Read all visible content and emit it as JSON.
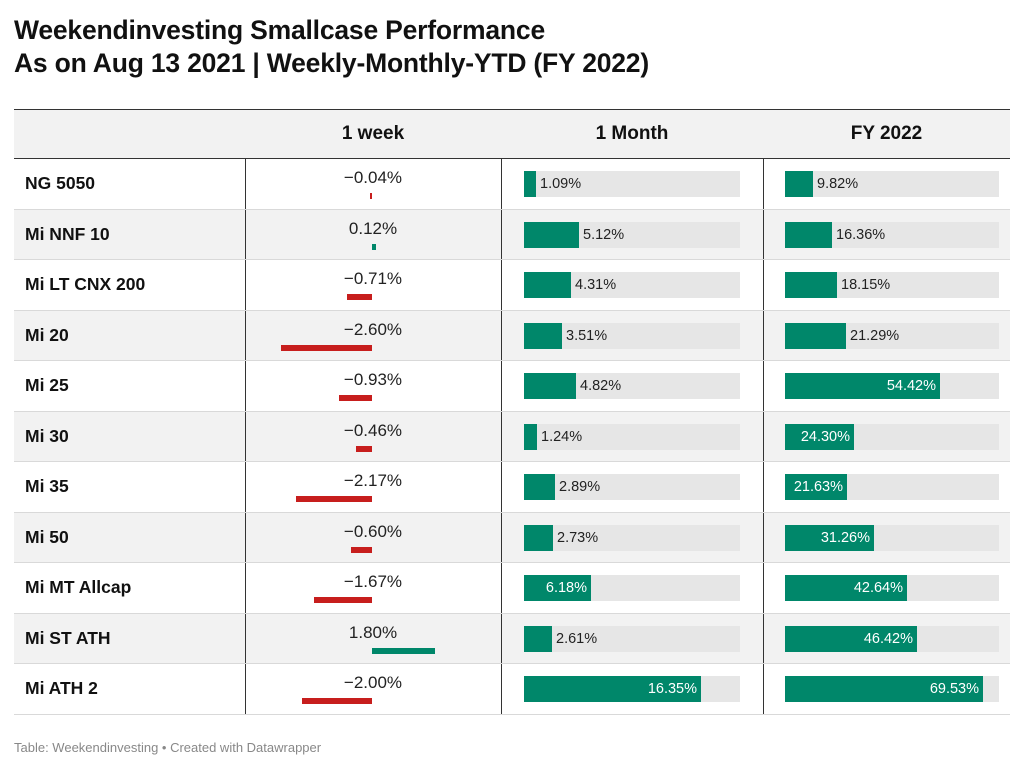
{
  "title_lines": [
    "Weekendinvesting Smallcase Performance",
    "As on Aug 13 2021 | Weekly-Monthly-YTD (FY 2022)"
  ],
  "footer": "Table: Weekendinvesting • Created with Datawrapper",
  "colors": {
    "positive": "#00876a",
    "negative": "#c71e1d",
    "bar_bg": "#e6e6e6"
  },
  "chart_data": {
    "type": "table",
    "columns": [
      "",
      "1 week",
      "1 Month",
      "FY 2022"
    ],
    "rows": [
      {
        "name": "NG 5050",
        "week": -0.04,
        "week_label": "−0.04%",
        "month": 1.09,
        "month_label": "1.09%",
        "fy": 9.82,
        "fy_label": "9.82%"
      },
      {
        "name": "Mi NNF 10",
        "week": 0.12,
        "week_label": "0.12%",
        "month": 5.12,
        "month_label": "5.12%",
        "fy": 16.36,
        "fy_label": "16.36%"
      },
      {
        "name": "Mi LT CNX 200",
        "week": -0.71,
        "week_label": "−0.71%",
        "month": 4.31,
        "month_label": "4.31%",
        "fy": 18.15,
        "fy_label": "18.15%"
      },
      {
        "name": "Mi 20",
        "week": -2.6,
        "week_label": "−2.60%",
        "month": 3.51,
        "month_label": "3.51%",
        "fy": 21.29,
        "fy_label": "21.29%"
      },
      {
        "name": "Mi 25",
        "week": -0.93,
        "week_label": "−0.93%",
        "month": 4.82,
        "month_label": "4.82%",
        "fy": 54.42,
        "fy_label": "54.42%"
      },
      {
        "name": "Mi 30",
        "week": -0.46,
        "week_label": "−0.46%",
        "month": 1.24,
        "month_label": "1.24%",
        "fy": 24.3,
        "fy_label": "24.30%"
      },
      {
        "name": "Mi 35",
        "week": -2.17,
        "week_label": "−2.17%",
        "month": 2.89,
        "month_label": "2.89%",
        "fy": 21.63,
        "fy_label": "21.63%"
      },
      {
        "name": "Mi 50",
        "week": -0.6,
        "week_label": "−0.60%",
        "month": 2.73,
        "month_label": "2.73%",
        "fy": 31.26,
        "fy_label": "31.26%"
      },
      {
        "name": "Mi MT Allcap",
        "week": -1.67,
        "week_label": "−1.67%",
        "month": 6.18,
        "month_label": "6.18%",
        "fy": 42.64,
        "fy_label": "42.64%"
      },
      {
        "name": "Mi ST ATH",
        "week": 1.8,
        "week_label": "1.80%",
        "month": 2.61,
        "month_label": "2.61%",
        "fy": 46.42,
        "fy_label": "46.42%"
      },
      {
        "name": "Mi ATH 2",
        "week": -2.0,
        "week_label": "−2.00%",
        "month": 16.35,
        "month_label": "16.35%",
        "fy": 69.53,
        "fy_label": "69.53%"
      }
    ],
    "month_bar_max": 20,
    "fy_bar_max": 75
  }
}
